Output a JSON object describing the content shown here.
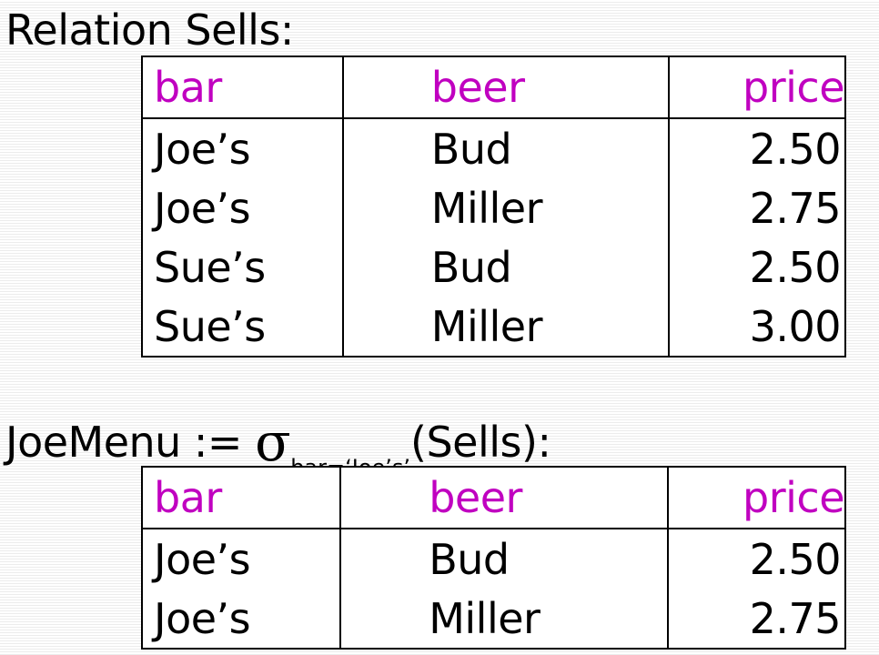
{
  "heading1": "Relation Sells:",
  "heading2": {
    "prefix": "JoeMenu := ",
    "sigma": "σ",
    "subscript": "bar=‘Joe’s’",
    "suffix": "(Sells):"
  },
  "colors": {
    "header_text": "#c000c0",
    "body_text": "#000000"
  },
  "sells": {
    "columns": [
      "bar",
      "beer",
      "price"
    ],
    "rows": [
      [
        "Joe’s",
        "Bud",
        "2.50"
      ],
      [
        "Joe’s",
        "Miller",
        "2.75"
      ],
      [
        "Sue’s",
        "Bud",
        "2.50"
      ],
      [
        "Sue’s",
        "Miller",
        "3.00"
      ]
    ]
  },
  "joemenu": {
    "columns": [
      "bar",
      "beer",
      "price"
    ],
    "rows": [
      [
        "Joe’s",
        "Bud",
        "2.50"
      ],
      [
        "Joe’s",
        "Miller",
        "2.75"
      ]
    ]
  }
}
